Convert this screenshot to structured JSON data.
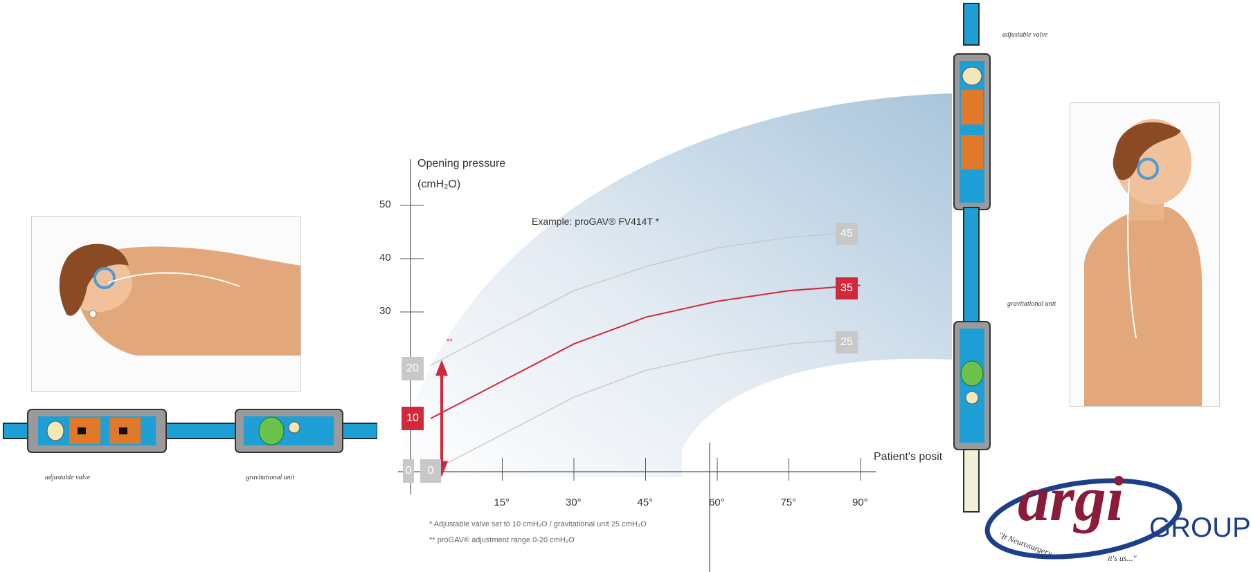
{
  "chart_data": {
    "type": "line",
    "title": "Example: proGAV® FV414T *",
    "y_axis_title": "Opening pressure",
    "y_axis_unit": "(cmH₂O)",
    "y_ticks": [
      "50",
      "40",
      "30"
    ],
    "x_axis_title": "Patient's posit",
    "x_ticks": [
      "15°",
      "30°",
      "45°",
      "60°",
      "75°",
      "90°"
    ],
    "x": [
      0,
      15,
      30,
      45,
      60,
      75,
      90
    ],
    "ylim": [
      0,
      50
    ],
    "xlim": [
      0,
      90
    ],
    "series": [
      {
        "values": [
          20,
          27,
          34,
          38.5,
          42,
          44,
          45
        ],
        "end_label": "45",
        "start_label": "20",
        "color": "#c8c8c8"
      },
      {
        "values": [
          10,
          17,
          24,
          29,
          32,
          34,
          35
        ],
        "end_label": "35",
        "start_label": "10",
        "color": "#d02a3a"
      },
      {
        "values": [
          0,
          7,
          14,
          19,
          22,
          24,
          25
        ],
        "end_label": "25",
        "start_label": "0",
        "color": "#c8c8c8"
      }
    ],
    "footnotes": [
      "* Adjustable valve set to 10 cmH₂O / gravitational unit 25 cmH₂O",
      "** proGAV® adjustment range 0-20 cmH₂O"
    ],
    "range_marker": "**"
  },
  "labels": {
    "left_adjustable": "adjustable valve",
    "left_gravitational": "gravitational unit",
    "right_adjustable": "adjustable valve",
    "right_gravitational": "gravitational unit",
    "zero_box": "0"
  },
  "logo": {
    "brand": "argi",
    "group": "GROUP",
    "tagline_left": "\"It Neurosurgery,",
    "tagline_right": "it's us...\""
  },
  "colors": {
    "accent_red": "#d02a3a",
    "gray_box": "#c8c8c8",
    "valve_blue": "#1e9fd6",
    "valve_orange": "#e07a2a",
    "logo_blue": "#1c3f8a",
    "logo_maroon": "#8a1b3a"
  }
}
